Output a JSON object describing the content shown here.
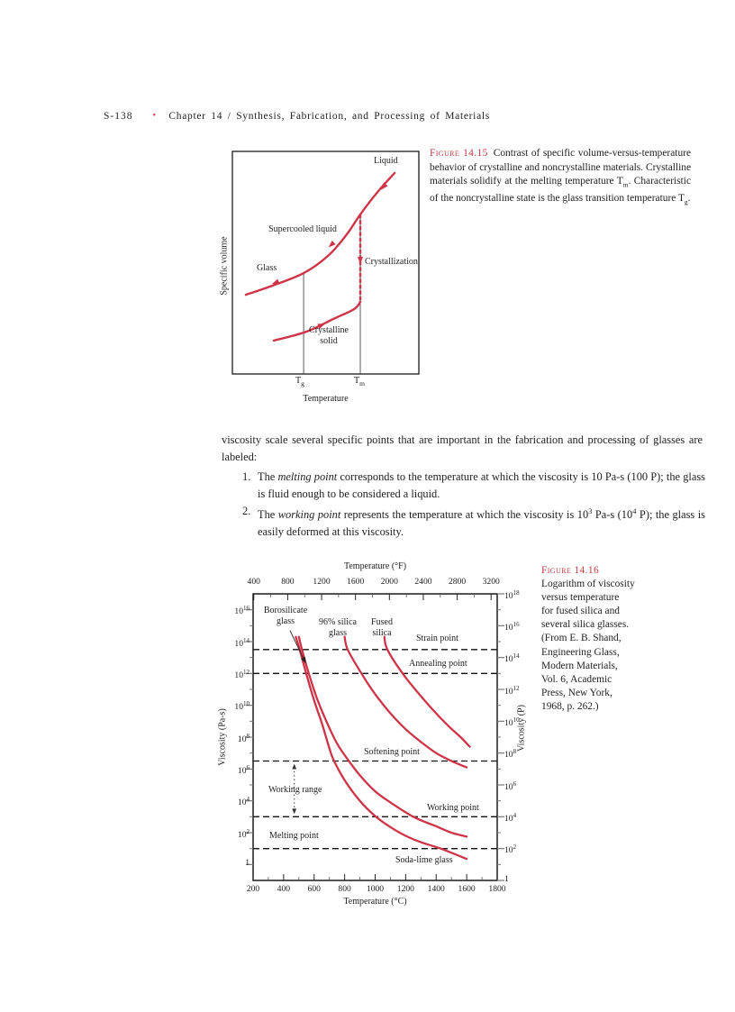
{
  "colors": {
    "curve_red": "#ce3448",
    "figure_label_red": "#c23a44",
    "line_black": "#1a1a1a",
    "tick_gray": "#777777"
  },
  "header": {
    "page_number": "S-138",
    "bullet": "•",
    "chapter": "Chapter 14 / Synthesis, Fabrication, and Processing of Materials"
  },
  "fig15_caption": {
    "label": "Figure 14.15",
    "seg1": "Contrast of specific volume-versus-temperature behavior of crystalline and noncrystalline materials. Crystalline materials solidify at the melting temperature T",
    "sub1": "m",
    "seg2": ". Characteristic of the noncrystalline state is the glass transition temperature T",
    "sub2": "g",
    "seg3": "."
  },
  "paragraph": {
    "text": "viscosity scale several specific points that are important in the fabrication and processing of glasses are labeled:"
  },
  "list": {
    "item1": {
      "number": "1.",
      "pre": "The ",
      "emph": "melting point",
      "post": " corresponds to the temperature at which the viscosity is 10 Pa-s (100 P); the glass is fluid enough to be considered a liquid."
    },
    "item2": {
      "number": "2.",
      "pre": "The ",
      "emph": "working point",
      "post1": " represents the temperature at which the viscosity is 10",
      "sup1": "3",
      "post2": " Pa-s (10",
      "sup2": "4",
      "post3": " P); the glass is easily deformed at this viscosity."
    }
  },
  "fig16_caption": {
    "label": "Figure 14.16",
    "lines": [
      "Logarithm of viscosity",
      "versus temperature",
      "for fused silica and",
      "several silica glasses.",
      "(From E. B. Shand,",
      "Engineering Glass,",
      "Modern Materials,",
      "Vol. 6, Academic",
      "Press, New York,",
      "1968, p. 262.)"
    ]
  },
  "chart_data": [
    {
      "type": "line",
      "description": "Schematic specific volume versus temperature for crystalline and noncrystalline materials",
      "xlabel": "Temperature",
      "ylabel": "Specific volume",
      "x_ticks": [
        {
          "base": "T",
          "sub": "g"
        },
        {
          "base": "T",
          "sub": "m"
        }
      ],
      "labels": {
        "liquid": "Liquid",
        "supercooled": "Supercooled liquid",
        "glass": "Glass",
        "crystallization": "Crystallization",
        "crystalline_line1": "Crystalline",
        "crystalline_line2": "solid"
      },
      "shape_pct": {
        "cooling_curve": [
          [
            7.2,
            64.4
          ],
          [
            20.3,
            60.7
          ],
          [
            38.2,
            54.7
          ],
          [
            51.7,
            46.6
          ],
          [
            61.4,
            37.2
          ],
          [
            68.6,
            28.3
          ],
          [
            78.3,
            17.8
          ],
          [
            87,
            9.7
          ]
        ],
        "crystalline_curve": [
          [
            22.2,
            85.0
          ],
          [
            39.6,
            81.0
          ],
          [
            54.1,
            75.3
          ],
          [
            65.2,
            70.9
          ],
          [
            68.6,
            67.6
          ]
        ],
        "tg_x": 38.2,
        "tm_x": 68.6,
        "crystallization_y": [
          28.3,
          67.6
        ],
        "arrows": [
          {
            "p": [
              81,
              16
            ],
            "deg": 130
          },
          {
            "p": [
              53,
              42
            ],
            "deg": 138
          },
          {
            "p": [
              23,
              59
            ],
            "deg": 160
          },
          {
            "p": [
              48,
              78
            ],
            "deg": -22
          },
          {
            "p": [
              68.6,
              49
            ],
            "deg": 90
          }
        ]
      }
    },
    {
      "type": "line",
      "description": "Logarithm of viscosity versus temperature for fused silica and several silica glasses",
      "x_range_c": [
        200,
        1800
      ],
      "y_range_log10_pas": [
        -1,
        17
      ],
      "x_axis_bottom": {
        "label": "Temperature (°C)",
        "ticks": [
          200,
          400,
          600,
          800,
          1000,
          1200,
          1400,
          1600,
          1800
        ],
        "minor_step": 100
      },
      "x_axis_top": {
        "label": "Temperature (°F)",
        "ticks": [
          400,
          800,
          1200,
          1600,
          2000,
          2400,
          2800,
          3200
        ],
        "minor_step": 200
      },
      "y_axis_left": {
        "label": "Viscosity (Pa-s)",
        "scale": "log",
        "tick_exponents": [
          0,
          2,
          4,
          6,
          8,
          10,
          12,
          14,
          16
        ],
        "minor_exponents": [
          1,
          3,
          5,
          7,
          9,
          11,
          13,
          15
        ]
      },
      "y_axis_right": {
        "label": "Viscosity (P)",
        "scale": "log",
        "tick_exponents_P": [
          0,
          2,
          4,
          6,
          8,
          10,
          12,
          14,
          16,
          18
        ],
        "minor_exponents_P": [
          1,
          3,
          5,
          7,
          9,
          11,
          13,
          15,
          17
        ]
      },
      "reference_lines": [
        {
          "label": "Strain point",
          "log10_pas": 13.5
        },
        {
          "label": "Annealing point",
          "log10_pas": 12
        },
        {
          "label": "Softening point",
          "log10_pas": 6.5
        },
        {
          "label": "Working point",
          "log10_pas": 3
        },
        {
          "label": "Melting point",
          "log10_pas": 1
        }
      ],
      "series": [
        {
          "name": "Soda-lime glass",
          "label_lines": [
            "Soda-lime glass"
          ],
          "points": [
            [
              480,
              14.3
            ],
            [
              505,
              13.5
            ],
            [
              548,
              12.0
            ],
            [
              600,
              10.3
            ],
            [
              650,
              8.9
            ],
            [
              700,
              7.3
            ],
            [
              726,
              6.6
            ],
            [
              800,
              5.3
            ],
            [
              900,
              4.0
            ],
            [
              1005,
              3.0
            ],
            [
              1100,
              2.35
            ],
            [
              1200,
              1.8
            ],
            [
              1300,
              1.4
            ],
            [
              1430,
              1.0
            ],
            [
              1600,
              0.35
            ]
          ]
        },
        {
          "name": "Borosilicate glass",
          "label_lines": [
            "Borosilicate",
            "glass"
          ],
          "points": [
            [
              500,
              14.3
            ],
            [
              520,
              13.5
            ],
            [
              565,
              12.0
            ],
            [
              620,
              10.4
            ],
            [
              680,
              9.0
            ],
            [
              750,
              7.6
            ],
            [
              820,
              6.6
            ],
            [
              900,
              5.6
            ],
            [
              1000,
              4.6
            ],
            [
              1100,
              3.9
            ],
            [
              1250,
              3.0
            ],
            [
              1400,
              2.4
            ],
            [
              1500,
              2.0
            ],
            [
              1600,
              1.75
            ]
          ]
        },
        {
          "name": "96% silica glass",
          "label_lines": [
            "96% silica",
            "glass"
          ],
          "points": [
            [
              800,
              14.3
            ],
            [
              820,
              13.5
            ],
            [
              910,
              12.0
            ],
            [
              1000,
              10.7
            ],
            [
              1100,
              9.5
            ],
            [
              1200,
              8.5
            ],
            [
              1300,
              7.7
            ],
            [
              1400,
              7.0
            ],
            [
              1500,
              6.5
            ],
            [
              1600,
              6.1
            ]
          ]
        },
        {
          "name": "Fused silica",
          "label_lines": [
            "Fused",
            "silica"
          ],
          "points": [
            [
              1060,
              14.3
            ],
            [
              1080,
              13.5
            ],
            [
              1180,
              12.0
            ],
            [
              1280,
              10.8
            ],
            [
              1380,
              9.7
            ],
            [
              1480,
              8.7
            ],
            [
              1560,
              8.0
            ],
            [
              1620,
              7.4
            ]
          ]
        }
      ],
      "annotations": {
        "working_range": {
          "label": "Working range",
          "x_c": 470,
          "from_log": 6.5,
          "to_log": 3
        },
        "borosilicate_pointer": {
          "from": [
            442,
            14.7
          ],
          "to": [
            537,
            12.8
          ]
        }
      }
    }
  ]
}
